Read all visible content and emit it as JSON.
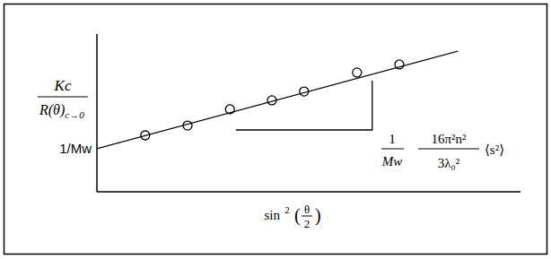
{
  "chart_data": {
    "type": "scatter",
    "color": "#000000",
    "x_label": {
      "prefix": "sin",
      "superscript": "2",
      "open": "(",
      "numerator": "θ",
      "denominator": "2",
      "close": ")"
    },
    "y_label": {
      "numerator": "Kc",
      "denominator": "R(θ)",
      "subscript": "c→0"
    },
    "xlim": [
      0,
      1
    ],
    "ylim": [
      0,
      1
    ],
    "xticks": [],
    "yticks": [
      {
        "value": 0.273,
        "label": "1/Mw"
      }
    ],
    "tick_labels": "y",
    "grid": false,
    "series": [
      {
        "type": "scatter",
        "marker": "circle",
        "color": "#000000",
        "x": [
          0.114,
          0.214,
          0.314,
          0.413,
          0.489,
          0.614,
          0.714
        ],
        "values": [
          0.358,
          0.42,
          0.523,
          0.58,
          0.636,
          0.756,
          0.807
        ]
      },
      {
        "type": "line",
        "line_style": "solid",
        "color": "#000000",
        "x": [
          0,
          0.852
        ],
        "values": [
          0.273,
          0.892
        ]
      }
    ],
    "slope_triangle": {
      "x": [
        0.328,
        0.65
      ],
      "y": [
        0.392,
        0.705
      ]
    },
    "slope_label": {
      "numerator1": "1",
      "denominator1": "Mw",
      "numerator2": "16π²n²",
      "denominator2": "3λ₀²",
      "suffix": "⟨s²⟩"
    }
  }
}
